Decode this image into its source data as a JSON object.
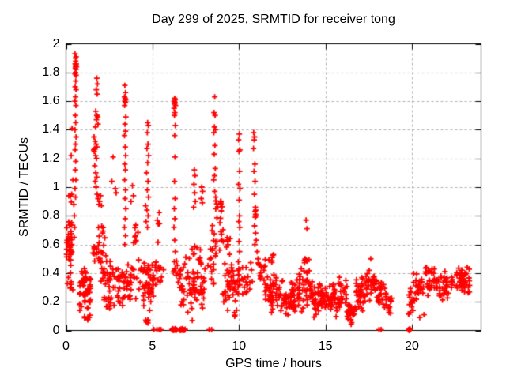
{
  "chart_data": {
    "type": "scatter",
    "title": "Day 299 of 2025, SRMTID for receiver tong",
    "xlabel": "GPS time / hours",
    "ylabel": "SRMTID / TECUs",
    "series_name": "SRMTID",
    "xlim": [
      0,
      24
    ],
    "ylim": [
      0,
      2
    ],
    "xticks": [
      0,
      5,
      10,
      15,
      20
    ],
    "xtick_labels": [
      "0",
      "5",
      "10",
      "15",
      "20"
    ],
    "yticks": [
      0,
      0.2,
      0.4,
      0.6,
      0.8,
      1,
      1.2,
      1.4,
      1.6,
      1.8,
      2
    ],
    "ytick_labels": [
      "0",
      "0.2",
      "0.4",
      "0.6",
      "0.8",
      "1",
      "1.2",
      "1.4",
      "1.6",
      "1.8",
      "2"
    ],
    "grid": true,
    "legend": false,
    "marker": "plus",
    "marker_color": "#ff0000",
    "grid_color": "#b0b0b0",
    "border_color": "#000000",
    "background_color": "#ffffff",
    "points": [
      [
        0.52,
        1.93
      ],
      [
        0.55,
        1.9
      ],
      [
        0.58,
        1.91
      ],
      [
        0.56,
        1.88
      ],
      [
        0.53,
        1.86
      ],
      [
        0.57,
        1.85
      ],
      [
        0.55,
        1.84
      ],
      [
        0.59,
        1.86
      ],
      [
        0.54,
        1.83
      ],
      [
        0.6,
        1.84
      ],
      [
        0.57,
        1.82
      ],
      [
        0.55,
        1.8
      ],
      [
        0.52,
        1.79
      ],
      [
        0.58,
        1.78
      ],
      [
        0.56,
        1.74
      ],
      [
        0.53,
        1.7
      ],
      [
        0.58,
        1.68
      ],
      [
        0.55,
        1.63
      ],
      [
        0.52,
        1.6
      ],
      [
        0.57,
        1.57
      ],
      [
        0.54,
        1.5
      ],
      [
        0.56,
        1.45
      ],
      [
        0.52,
        1.4
      ],
      [
        0.58,
        1.35
      ],
      [
        0.55,
        1.3
      ],
      [
        0.53,
        1.26
      ],
      [
        0.56,
        1.18
      ],
      [
        0.54,
        1.12
      ],
      [
        0.57,
        1.05
      ],
      [
        0.52,
        0.99
      ],
      [
        0.55,
        0.93
      ],
      [
        0.35,
        1.41
      ],
      [
        0.3,
        1.22
      ],
      [
        0.4,
        1.05
      ],
      [
        0.33,
        0.95
      ],
      [
        0.45,
        0.88
      ],
      [
        0.48,
        0.8
      ],
      [
        0.5,
        0.72
      ],
      [
        0.47,
        0.65
      ],
      [
        1.78,
        1.76
      ],
      [
        1.82,
        1.72
      ],
      [
        1.75,
        1.68
      ],
      [
        1.8,
        1.65
      ],
      [
        1.72,
        1.53
      ],
      [
        1.78,
        1.5
      ],
      [
        1.83,
        1.49
      ],
      [
        1.76,
        1.47
      ],
      [
        1.85,
        1.44
      ],
      [
        1.7,
        1.42
      ],
      [
        1.62,
        1.35
      ],
      [
        1.68,
        1.32
      ],
      [
        1.74,
        1.3
      ],
      [
        1.79,
        1.28
      ],
      [
        1.6,
        1.26
      ],
      [
        1.63,
        1.25
      ],
      [
        1.65,
        1.27
      ],
      [
        1.71,
        1.22
      ],
      [
        1.76,
        1.2
      ],
      [
        1.66,
        1.15
      ],
      [
        1.72,
        1.1
      ],
      [
        1.78,
        1.07
      ],
      [
        1.68,
        1.04
      ],
      [
        1.74,
        1.0
      ],
      [
        1.8,
        0.95
      ],
      [
        1.85,
        0.92
      ],
      [
        1.9,
        0.88
      ],
      [
        1.95,
        0.9
      ],
      [
        2.0,
        0.94
      ],
      [
        2.05,
        0.87
      ],
      [
        2.72,
        1.21
      ],
      [
        2.65,
        1.04
      ],
      [
        2.85,
        0.99
      ],
      [
        2.9,
        0.96
      ],
      [
        3.4,
        1.71
      ],
      [
        3.44,
        1.66
      ],
      [
        3.38,
        1.63
      ],
      [
        3.42,
        1.62
      ],
      [
        3.45,
        1.61
      ],
      [
        3.4,
        1.6
      ],
      [
        3.43,
        1.59
      ],
      [
        3.39,
        1.57
      ],
      [
        3.46,
        1.49
      ],
      [
        3.41,
        1.44
      ],
      [
        3.44,
        1.39
      ],
      [
        3.38,
        1.36
      ],
      [
        3.42,
        1.28
      ],
      [
        3.45,
        1.22
      ],
      [
        3.4,
        1.16
      ],
      [
        3.43,
        1.12
      ],
      [
        3.39,
        1.05
      ],
      [
        3.44,
        0.98
      ],
      [
        3.41,
        0.92
      ],
      [
        3.46,
        0.85
      ],
      [
        3.42,
        0.78
      ],
      [
        3.38,
        0.72
      ],
      [
        3.44,
        0.66
      ],
      [
        3.4,
        0.6
      ],
      [
        3.84,
        1.01
      ],
      [
        3.9,
        0.94
      ],
      [
        3.76,
        0.9
      ],
      [
        4.72,
        1.45
      ],
      [
        4.76,
        1.43
      ],
      [
        4.7,
        1.38
      ],
      [
        4.74,
        1.3
      ],
      [
        4.68,
        1.27
      ],
      [
        4.78,
        1.22
      ],
      [
        4.72,
        1.17
      ],
      [
        4.66,
        1.1
      ],
      [
        4.74,
        1.04
      ],
      [
        4.7,
        0.98
      ],
      [
        4.77,
        0.93
      ],
      [
        4.6,
        0.87
      ],
      [
        4.68,
        0.84
      ],
      [
        4.75,
        0.8
      ],
      [
        4.63,
        0.76
      ],
      [
        4.71,
        0.72
      ],
      [
        6.28,
        1.62
      ],
      [
        6.31,
        1.61
      ],
      [
        6.26,
        1.6
      ],
      [
        6.3,
        1.59
      ],
      [
        6.28,
        1.58
      ],
      [
        6.33,
        1.57
      ],
      [
        6.25,
        1.55
      ],
      [
        6.29,
        1.52
      ],
      [
        6.27,
        1.5
      ],
      [
        6.32,
        1.43
      ],
      [
        6.28,
        1.36
      ],
      [
        6.3,
        1.21
      ],
      [
        6.27,
        1.04
      ],
      [
        6.31,
        0.92
      ],
      [
        6.26,
        0.85
      ],
      [
        6.29,
        0.78
      ],
      [
        6.24,
        0.72
      ],
      [
        6.28,
        0.63
      ],
      [
        6.32,
        0.55
      ],
      [
        6.26,
        0.48
      ],
      [
        7.42,
        1.12
      ],
      [
        7.46,
        1.08
      ],
      [
        7.4,
        1.02
      ],
      [
        7.44,
        0.96
      ],
      [
        7.48,
        0.9
      ],
      [
        7.38,
        0.86
      ],
      [
        7.85,
        1.0
      ],
      [
        7.9,
        0.97
      ],
      [
        7.82,
        0.92
      ],
      [
        7.88,
        0.89
      ],
      [
        7.3,
        0.07
      ],
      [
        8.6,
        1.63
      ],
      [
        8.56,
        1.52
      ],
      [
        8.62,
        1.5
      ],
      [
        8.58,
        1.42
      ],
      [
        8.64,
        1.4
      ],
      [
        8.55,
        1.38
      ],
      [
        8.61,
        1.29
      ],
      [
        8.57,
        1.23
      ],
      [
        8.63,
        1.13
      ],
      [
        8.59,
        1.08
      ],
      [
        8.54,
        1.05
      ],
      [
        8.6,
        0.97
      ],
      [
        8.65,
        0.93
      ],
      [
        10.02,
        1.37
      ],
      [
        9.98,
        1.33
      ],
      [
        10.05,
        1.26
      ],
      [
        10.0,
        1.25
      ],
      [
        10.04,
        1.11
      ],
      [
        9.97,
        1.02
      ],
      [
        10.06,
        0.99
      ],
      [
        10.01,
        0.91
      ],
      [
        10.03,
        0.8
      ],
      [
        9.99,
        0.76
      ],
      [
        10.05,
        0.72
      ],
      [
        10.0,
        0.62
      ],
      [
        10.04,
        0.55
      ],
      [
        9.96,
        0.48
      ],
      [
        10.85,
        1.38
      ],
      [
        10.9,
        1.35
      ],
      [
        10.88,
        1.33
      ],
      [
        10.84,
        1.27
      ],
      [
        10.92,
        1.16
      ],
      [
        10.87,
        1.11
      ],
      [
        10.93,
        1.04
      ],
      [
        10.89,
        0.95
      ],
      [
        10.95,
        0.86
      ],
      [
        10.97,
        0.84
      ],
      [
        10.93,
        0.83
      ],
      [
        10.96,
        0.81
      ],
      [
        10.99,
        0.8
      ],
      [
        10.94,
        0.79
      ],
      [
        10.9,
        0.73
      ],
      [
        10.96,
        0.68
      ],
      [
        11.0,
        0.63
      ],
      [
        10.92,
        0.6
      ],
      [
        11.05,
        0.55
      ],
      [
        11.1,
        0.5
      ],
      [
        11.15,
        0.46
      ],
      [
        13.88,
        0.77
      ],
      [
        13.93,
        0.71
      ],
      [
        17.62,
        0.5
      ],
      [
        20.45,
        0.09
      ],
      [
        20.7,
        0.11
      ],
      [
        5.08,
        0.005
      ],
      [
        5.26,
        0.005
      ],
      [
        5.39,
        0.005
      ],
      [
        5.49,
        0.005
      ],
      [
        6.12,
        0.005
      ],
      [
        6.16,
        0.012
      ],
      [
        6.2,
        0.0
      ],
      [
        6.24,
        0.008
      ],
      [
        6.28,
        0.003
      ],
      [
        6.32,
        0.012
      ],
      [
        6.36,
        0.0
      ],
      [
        6.4,
        0.006
      ],
      [
        6.57,
        0.005
      ],
      [
        6.61,
        0.0
      ],
      [
        6.65,
        0.01
      ],
      [
        6.69,
        0.003
      ],
      [
        6.73,
        0.012
      ],
      [
        6.77,
        0.0
      ],
      [
        6.81,
        0.006
      ],
      [
        6.85,
        0.002
      ],
      [
        6.89,
        0.008
      ],
      [
        8.28,
        0.005
      ],
      [
        8.42,
        0.005
      ],
      [
        18.1,
        0.005
      ],
      [
        18.22,
        0.005
      ],
      [
        19.8,
        0.005
      ],
      [
        19.84,
        0.0
      ],
      [
        19.86,
        0.01
      ],
      [
        19.88,
        0.004
      ],
      [
        19.9,
        0.008
      ]
    ],
    "clusters": [
      {
        "x": [
          0.02,
          0.35
        ],
        "y": [
          0.42,
          0.8
        ],
        "n": 38
      },
      {
        "x": [
          0.05,
          0.45
        ],
        "y": [
          0.25,
          0.44
        ],
        "n": 8
      },
      {
        "x": [
          0.15,
          0.35
        ],
        "y": [
          0.85,
          1.02
        ],
        "n": 3
      },
      {
        "x": [
          0.75,
          1.45
        ],
        "y": [
          0.1,
          0.5
        ],
        "n": 55
      },
      {
        "x": [
          1.05,
          1.35
        ],
        "y": [
          0.04,
          0.12
        ],
        "n": 6
      },
      {
        "x": [
          1.55,
          2.15
        ],
        "y": [
          0.45,
          0.62
        ],
        "n": 18
      },
      {
        "x": [
          1.85,
          2.25
        ],
        "y": [
          0.55,
          0.75
        ],
        "n": 10
      },
      {
        "x": [
          2.0,
          2.75
        ],
        "y": [
          0.28,
          0.55
        ],
        "n": 28
      },
      {
        "x": [
          2.2,
          2.8
        ],
        "y": [
          0.12,
          0.28
        ],
        "n": 14
      },
      {
        "x": [
          2.75,
          3.3
        ],
        "y": [
          0.15,
          0.5
        ],
        "n": 20
      },
      {
        "x": [
          3.3,
          4.45
        ],
        "y": [
          0.15,
          0.55
        ],
        "n": 38
      },
      {
        "x": [
          3.9,
          4.2
        ],
        "y": [
          0.55,
          0.75
        ],
        "n": 8
      },
      {
        "x": [
          4.45,
          5.1
        ],
        "y": [
          0.12,
          0.52
        ],
        "n": 42
      },
      {
        "x": [
          4.55,
          4.85
        ],
        "y": [
          0.04,
          0.12
        ],
        "n": 5
      },
      {
        "x": [
          5.1,
          5.65
        ],
        "y": [
          0.28,
          0.52
        ],
        "n": 13
      },
      {
        "x": [
          5.2,
          5.45
        ],
        "y": [
          0.55,
          0.95
        ],
        "n": 6
      },
      {
        "x": [
          6.2,
          6.5
        ],
        "y": [
          0.3,
          0.5
        ],
        "n": 8
      },
      {
        "x": [
          6.55,
          7.15
        ],
        "y": [
          0.25,
          0.55
        ],
        "n": 22
      },
      {
        "x": [
          6.6,
          7.1
        ],
        "y": [
          0.1,
          0.25
        ],
        "n": 6
      },
      {
        "x": [
          7.15,
          8.05
        ],
        "y": [
          0.12,
          0.45
        ],
        "n": 40
      },
      {
        "x": [
          7.25,
          7.9
        ],
        "y": [
          0.45,
          0.65
        ],
        "n": 12
      },
      {
        "x": [
          8.2,
          8.55
        ],
        "y": [
          0.3,
          0.52
        ],
        "n": 10
      },
      {
        "x": [
          8.35,
          9.1
        ],
        "y": [
          0.52,
          0.8
        ],
        "n": 22
      },
      {
        "x": [
          8.65,
          9.05
        ],
        "y": [
          0.82,
          0.94
        ],
        "n": 10
      },
      {
        "x": [
          9.05,
          9.95
        ],
        "y": [
          0.15,
          0.48
        ],
        "n": 42
      },
      {
        "x": [
          9.2,
          9.5
        ],
        "y": [
          0.5,
          0.72
        ],
        "n": 7
      },
      {
        "x": [
          9.3,
          9.9
        ],
        "y": [
          0.08,
          0.15
        ],
        "n": 5
      },
      {
        "x": [
          9.9,
          10.2
        ],
        "y": [
          0.3,
          0.47
        ],
        "n": 8
      },
      {
        "x": [
          10.2,
          10.8
        ],
        "y": [
          0.2,
          0.5
        ],
        "n": 16
      },
      {
        "x": [
          11.1,
          11.55
        ],
        "y": [
          0.25,
          0.55
        ],
        "n": 14
      },
      {
        "x": [
          11.5,
          12.3
        ],
        "y": [
          0.12,
          0.42
        ],
        "n": 40
      },
      {
        "x": [
          11.7,
          12.1
        ],
        "y": [
          0.42,
          0.56
        ],
        "n": 6
      },
      {
        "x": [
          12.3,
          13.3
        ],
        "y": [
          0.08,
          0.35
        ],
        "n": 55
      },
      {
        "x": [
          13.3,
          14.2
        ],
        "y": [
          0.12,
          0.45
        ],
        "n": 45
      },
      {
        "x": [
          13.65,
          14.1
        ],
        "y": [
          0.45,
          0.56
        ],
        "n": 7
      },
      {
        "x": [
          14.2,
          15.3
        ],
        "y": [
          0.08,
          0.35
        ],
        "n": 55
      },
      {
        "x": [
          15.3,
          16.25
        ],
        "y": [
          0.08,
          0.38
        ],
        "n": 50
      },
      {
        "x": [
          16.25,
          16.75
        ],
        "y": [
          0.02,
          0.22
        ],
        "n": 30
      },
      {
        "x": [
          16.75,
          17.4
        ],
        "y": [
          0.1,
          0.38
        ],
        "n": 35
      },
      {
        "x": [
          17.35,
          18.0
        ],
        "y": [
          0.2,
          0.48
        ],
        "n": 30
      },
      {
        "x": [
          18.0,
          18.55
        ],
        "y": [
          0.12,
          0.38
        ],
        "n": 25
      },
      {
        "x": [
          18.5,
          18.85
        ],
        "y": [
          0.1,
          0.3
        ],
        "n": 12
      },
      {
        "x": [
          19.78,
          20.15
        ],
        "y": [
          0.08,
          0.3
        ],
        "n": 16
      },
      {
        "x": [
          20.1,
          20.6
        ],
        "y": [
          0.18,
          0.42
        ],
        "n": 20
      },
      {
        "x": [
          20.6,
          21.35
        ],
        "y": [
          0.22,
          0.5
        ],
        "n": 30
      },
      {
        "x": [
          21.35,
          22.25
        ],
        "y": [
          0.18,
          0.42
        ],
        "n": 34
      },
      {
        "x": [
          22.25,
          22.9
        ],
        "y": [
          0.2,
          0.44
        ],
        "n": 26
      },
      {
        "x": [
          22.85,
          23.35
        ],
        "y": [
          0.24,
          0.48
        ],
        "n": 24
      }
    ]
  }
}
